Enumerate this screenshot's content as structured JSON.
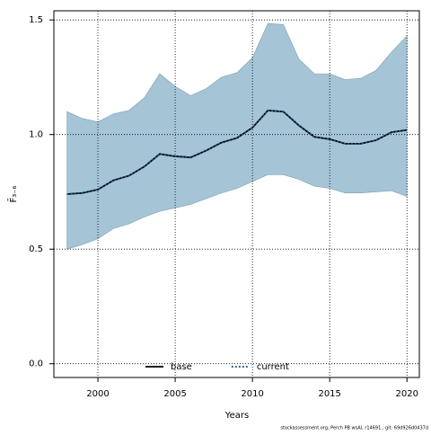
{
  "chart_data": {
    "type": "line",
    "x": [
      1998,
      1999,
      2000,
      2001,
      2002,
      2003,
      2004,
      2005,
      2006,
      2007,
      2008,
      2009,
      2010,
      2011,
      2012,
      2013,
      2014,
      2015,
      2016,
      2017,
      2018,
      2019,
      2020
    ],
    "series": [
      {
        "name": "base",
        "color": "#000000",
        "style": "solid",
        "values": [
          0.74,
          0.745,
          0.76,
          0.8,
          0.82,
          0.86,
          0.915,
          0.905,
          0.9,
          0.93,
          0.965,
          0.985,
          1.03,
          1.105,
          1.1,
          1.04,
          0.99,
          0.98,
          0.96,
          0.96,
          0.975,
          1.01,
          1.02
        ]
      },
      {
        "name": "current",
        "color": "#1f4e79",
        "style": "dotted",
        "values": [
          0.74,
          0.745,
          0.76,
          0.8,
          0.82,
          0.86,
          0.915,
          0.905,
          0.9,
          0.93,
          0.965,
          0.985,
          1.03,
          1.105,
          1.1,
          1.04,
          0.99,
          0.98,
          0.96,
          0.96,
          0.975,
          1.01,
          1.02
        ]
      }
    ],
    "band": {
      "color": "#a5c4d6",
      "upper": [
        1.1,
        1.07,
        1.055,
        1.09,
        1.105,
        1.16,
        1.265,
        1.21,
        1.17,
        1.2,
        1.25,
        1.27,
        1.335,
        1.485,
        1.48,
        1.33,
        1.265,
        1.265,
        1.24,
        1.245,
        1.28,
        1.36,
        1.43
      ],
      "lower": [
        0.5,
        0.52,
        0.545,
        0.59,
        0.61,
        0.64,
        0.665,
        0.68,
        0.695,
        0.72,
        0.745,
        0.765,
        0.795,
        0.825,
        0.825,
        0.805,
        0.775,
        0.765,
        0.745,
        0.745,
        0.75,
        0.755,
        0.73
      ]
    },
    "xlim": [
      1997.15,
      2020.8
    ],
    "ylim": [
      -0.06,
      1.54
    ],
    "xticks": [
      2000,
      2005,
      2010,
      2015,
      2020
    ],
    "yticks": [
      {
        "value": 0,
        "label": "0.0"
      },
      {
        "value": 0.5,
        "label": "0.5"
      },
      {
        "value": 1,
        "label": "1.0"
      },
      {
        "value": 1.5,
        "label": "1.5"
      }
    ],
    "grid": true,
    "legend": "bottom",
    "xlabel": "Years",
    "ylabel": "F̄₃₋₆",
    "footnote": "stockassessment.org, Perch PB wsAI, r14691 , git: 69d926d0437d"
  }
}
